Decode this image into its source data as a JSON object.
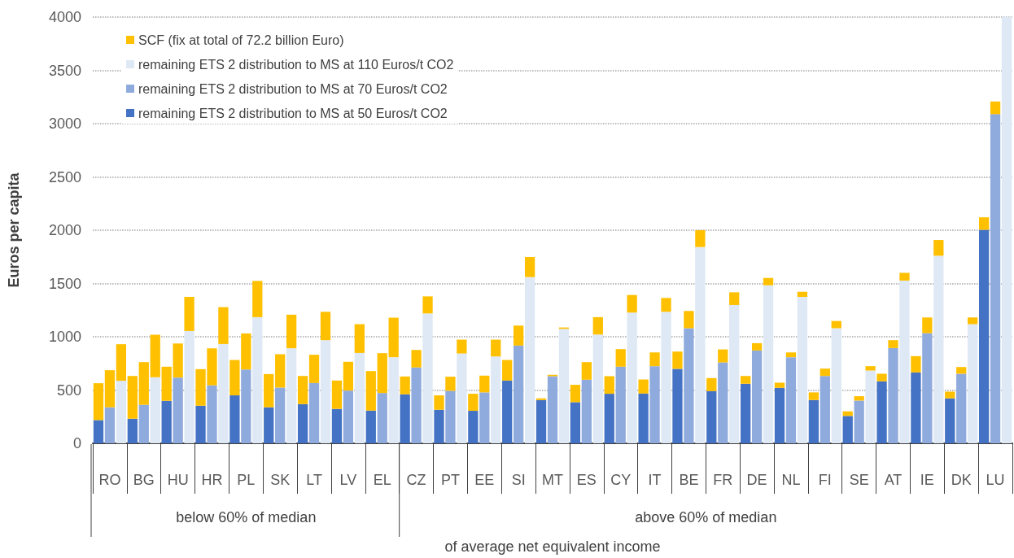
{
  "chart_data": {
    "type": "bar",
    "stacked": true,
    "ylabel": "Euros per capita",
    "xlabel": "of average net equivalent income",
    "annotations": [
      "below 60% of median",
      "above 60% of median"
    ],
    "categories": [
      null,
      "RO",
      null,
      null,
      "BG",
      null,
      null,
      "HU",
      null,
      null,
      "HR",
      null,
      null,
      "PL",
      null,
      null,
      "SK",
      null,
      null,
      "LT",
      null,
      null,
      "LV",
      null,
      null,
      "EL",
      null,
      null,
      "CZ",
      null,
      null,
      "PT",
      null,
      null,
      "EE",
      null,
      null,
      "SI",
      null,
      null,
      "MT",
      null,
      null,
      "ES",
      null,
      null,
      "CY",
      null,
      null,
      "IT",
      null,
      null,
      "BE",
      null,
      null,
      "FR",
      null,
      null,
      "DE",
      null,
      null,
      "NL",
      null,
      null,
      "FI",
      null,
      null,
      "SE",
      null,
      null,
      "AT",
      null,
      null,
      "IE",
      null,
      null,
      "DK",
      null,
      null,
      "LU",
      null
    ],
    "series": [
      {
        "name": "remaining ETS 2 distribution to MS at 50 Euros/t CO2",
        "color": "#4472c4",
        "values": [
          218,
          null,
          null,
          231,
          null,
          null,
          399,
          null,
          null,
          353,
          null,
          null,
          450,
          null,
          null,
          338,
          null,
          null,
          368,
          null,
          null,
          323,
          null,
          null,
          307,
          null,
          null,
          460,
          null,
          null,
          315,
          null,
          null,
          305,
          null,
          null,
          589,
          null,
          null,
          406,
          null,
          null,
          386,
          null,
          null,
          465,
          null,
          null,
          467,
          null,
          null,
          699,
          null,
          null,
          490,
          null,
          null,
          559,
          null,
          null,
          521,
          null,
          null,
          406,
          null,
          null,
          257,
          null,
          null,
          582,
          null,
          null,
          665,
          null,
          null,
          422,
          null,
          null,
          2004,
          null,
          null
        ]
      },
      {
        "name": "remaining ETS 2 distribution to MS at 70 Euros/t CO2",
        "color": "#8faadc",
        "values": [
          null,
          338,
          null,
          null,
          361,
          null,
          null,
          617,
          null,
          null,
          544,
          null,
          null,
          693,
          null,
          null,
          523,
          null,
          null,
          566,
          null,
          null,
          495,
          null,
          null,
          472,
          null,
          null,
          711,
          null,
          null,
          493,
          null,
          null,
          478,
          null,
          null,
          917,
          null,
          null,
          630,
          null,
          null,
          597,
          null,
          null,
          719,
          null,
          null,
          724,
          null,
          null,
          1080,
          null,
          null,
          759,
          null,
          null,
          871,
          null,
          null,
          808,
          null,
          null,
          632,
          null,
          null,
          401,
          null,
          null,
          894,
          null,
          null,
          1034,
          null,
          null,
          653,
          null,
          null,
          3089,
          null
        ]
      },
      {
        "name": "remaining ETS 2 distribution to MS at 110 Euros/t CO2",
        "color": "#dee9f5",
        "values": [
          null,
          null,
          587,
          null,
          null,
          620,
          null,
          null,
          1054,
          null,
          null,
          932,
          null,
          null,
          1184,
          null,
          null,
          892,
          null,
          null,
          968,
          null,
          null,
          848,
          null,
          null,
          808,
          null,
          null,
          1219,
          null,
          null,
          843,
          null,
          null,
          815,
          null,
          null,
          1560,
          null,
          null,
          1074,
          null,
          null,
          1021,
          null,
          null,
          1227,
          null,
          null,
          1234,
          null,
          null,
          1842,
          null,
          null,
          1298,
          null,
          null,
          1483,
          null,
          null,
          1374,
          null,
          null,
          1080,
          null,
          null,
          683,
          null,
          null,
          1527,
          null,
          null,
          1760,
          null,
          null,
          1118,
          null,
          null,
          4000
        ]
      },
      {
        "name": "SCF (fix at total of 72.2 billion Euro)",
        "color": "#ffc000",
        "values": [
          346,
          348,
          343,
          401,
          401,
          399,
          320,
          320,
          320,
          343,
          348,
          346,
          332,
          338,
          340,
          312,
          313,
          315,
          264,
          265,
          266,
          266,
          270,
          270,
          371,
          374,
          371,
          167,
          165,
          160,
          135,
          132,
          130,
          160,
          157,
          158,
          193,
          188,
          188,
          16,
          13,
          13,
          163,
          165,
          163,
          165,
          165,
          165,
          132,
          129,
          130,
          162,
          162,
          158,
          122,
          122,
          119,
          73,
          69,
          69,
          48,
          45,
          48,
          72,
          69,
          68,
          43,
          41,
          41,
          71,
          74,
          73,
          153,
          147,
          148,
          63,
          63,
          63,
          117,
          119,
          null
        ]
      }
    ],
    "ylim": [
      0,
      4000
    ],
    "yticks": [
      0,
      500,
      1000,
      1500,
      2000,
      2500,
      3000,
      3500,
      4000
    ],
    "grid": "y",
    "legend": "top left"
  }
}
